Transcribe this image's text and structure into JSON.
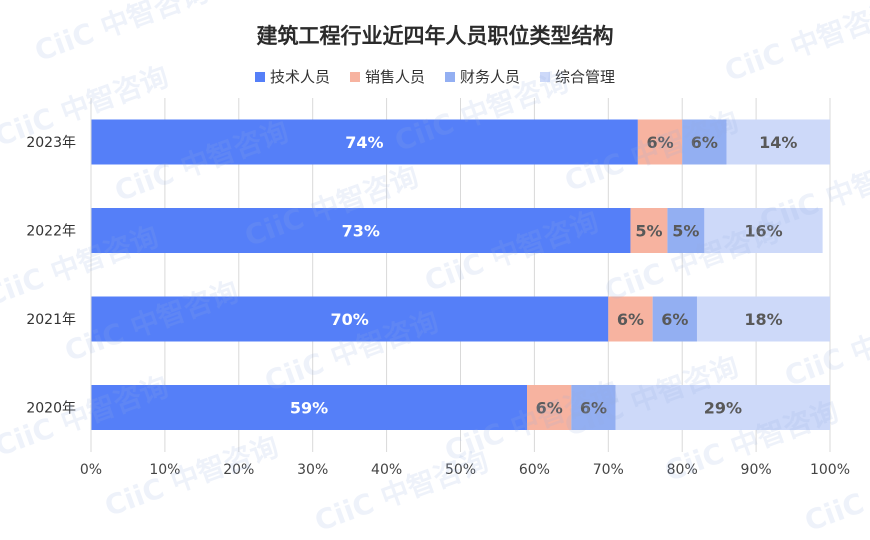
{
  "watermark_text": "CiiC 中智咨询",
  "chart_data": {
    "type": "bar",
    "orientation": "horizontal",
    "stacked": "percent",
    "title": "建筑工程行业近四年人员职位类型结构",
    "categories": [
      "2023年",
      "2022年",
      "2021年",
      "2020年"
    ],
    "series": [
      {
        "name": "技术人员",
        "color": "#557ff8",
        "values": [
          74,
          73,
          70,
          59
        ]
      },
      {
        "name": "销售人员",
        "color": "#f7b3a0",
        "values": [
          6,
          5,
          6,
          6
        ]
      },
      {
        "name": "财务人员",
        "color": "#93aff2",
        "values": [
          6,
          5,
          6,
          6
        ]
      },
      {
        "name": "综合管理",
        "color": "#cdd9f9",
        "values": [
          14,
          16,
          18,
          29
        ]
      }
    ],
    "xlim": [
      0,
      100
    ],
    "xticks": [
      "0%",
      "10%",
      "20%",
      "30%",
      "40%",
      "50%",
      "60%",
      "70%",
      "80%",
      "90%",
      "100%"
    ],
    "grid": true,
    "legend_position": "top"
  }
}
